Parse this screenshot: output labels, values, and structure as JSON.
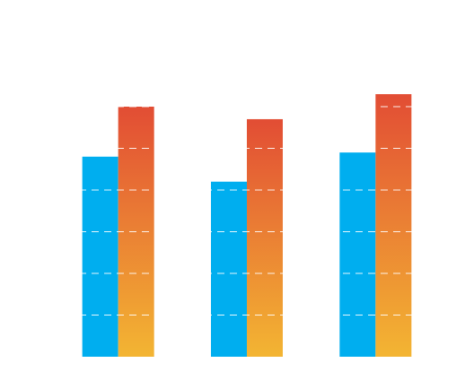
{
  "chart_data": {
    "type": "bar",
    "categories": [
      null,
      null,
      null
    ],
    "series": [
      {
        "color": "#00aeef",
        "values": [
          48,
          42,
          49
        ]
      },
      {
        "color": [
          "#e24d34",
          "#f3b533"
        ],
        "values": [
          60,
          57,
          63
        ]
      }
    ],
    "ylim": [
      0,
      70
    ],
    "yticks": [
      10,
      20,
      30,
      40,
      50,
      60
    ],
    "grid": true
  }
}
